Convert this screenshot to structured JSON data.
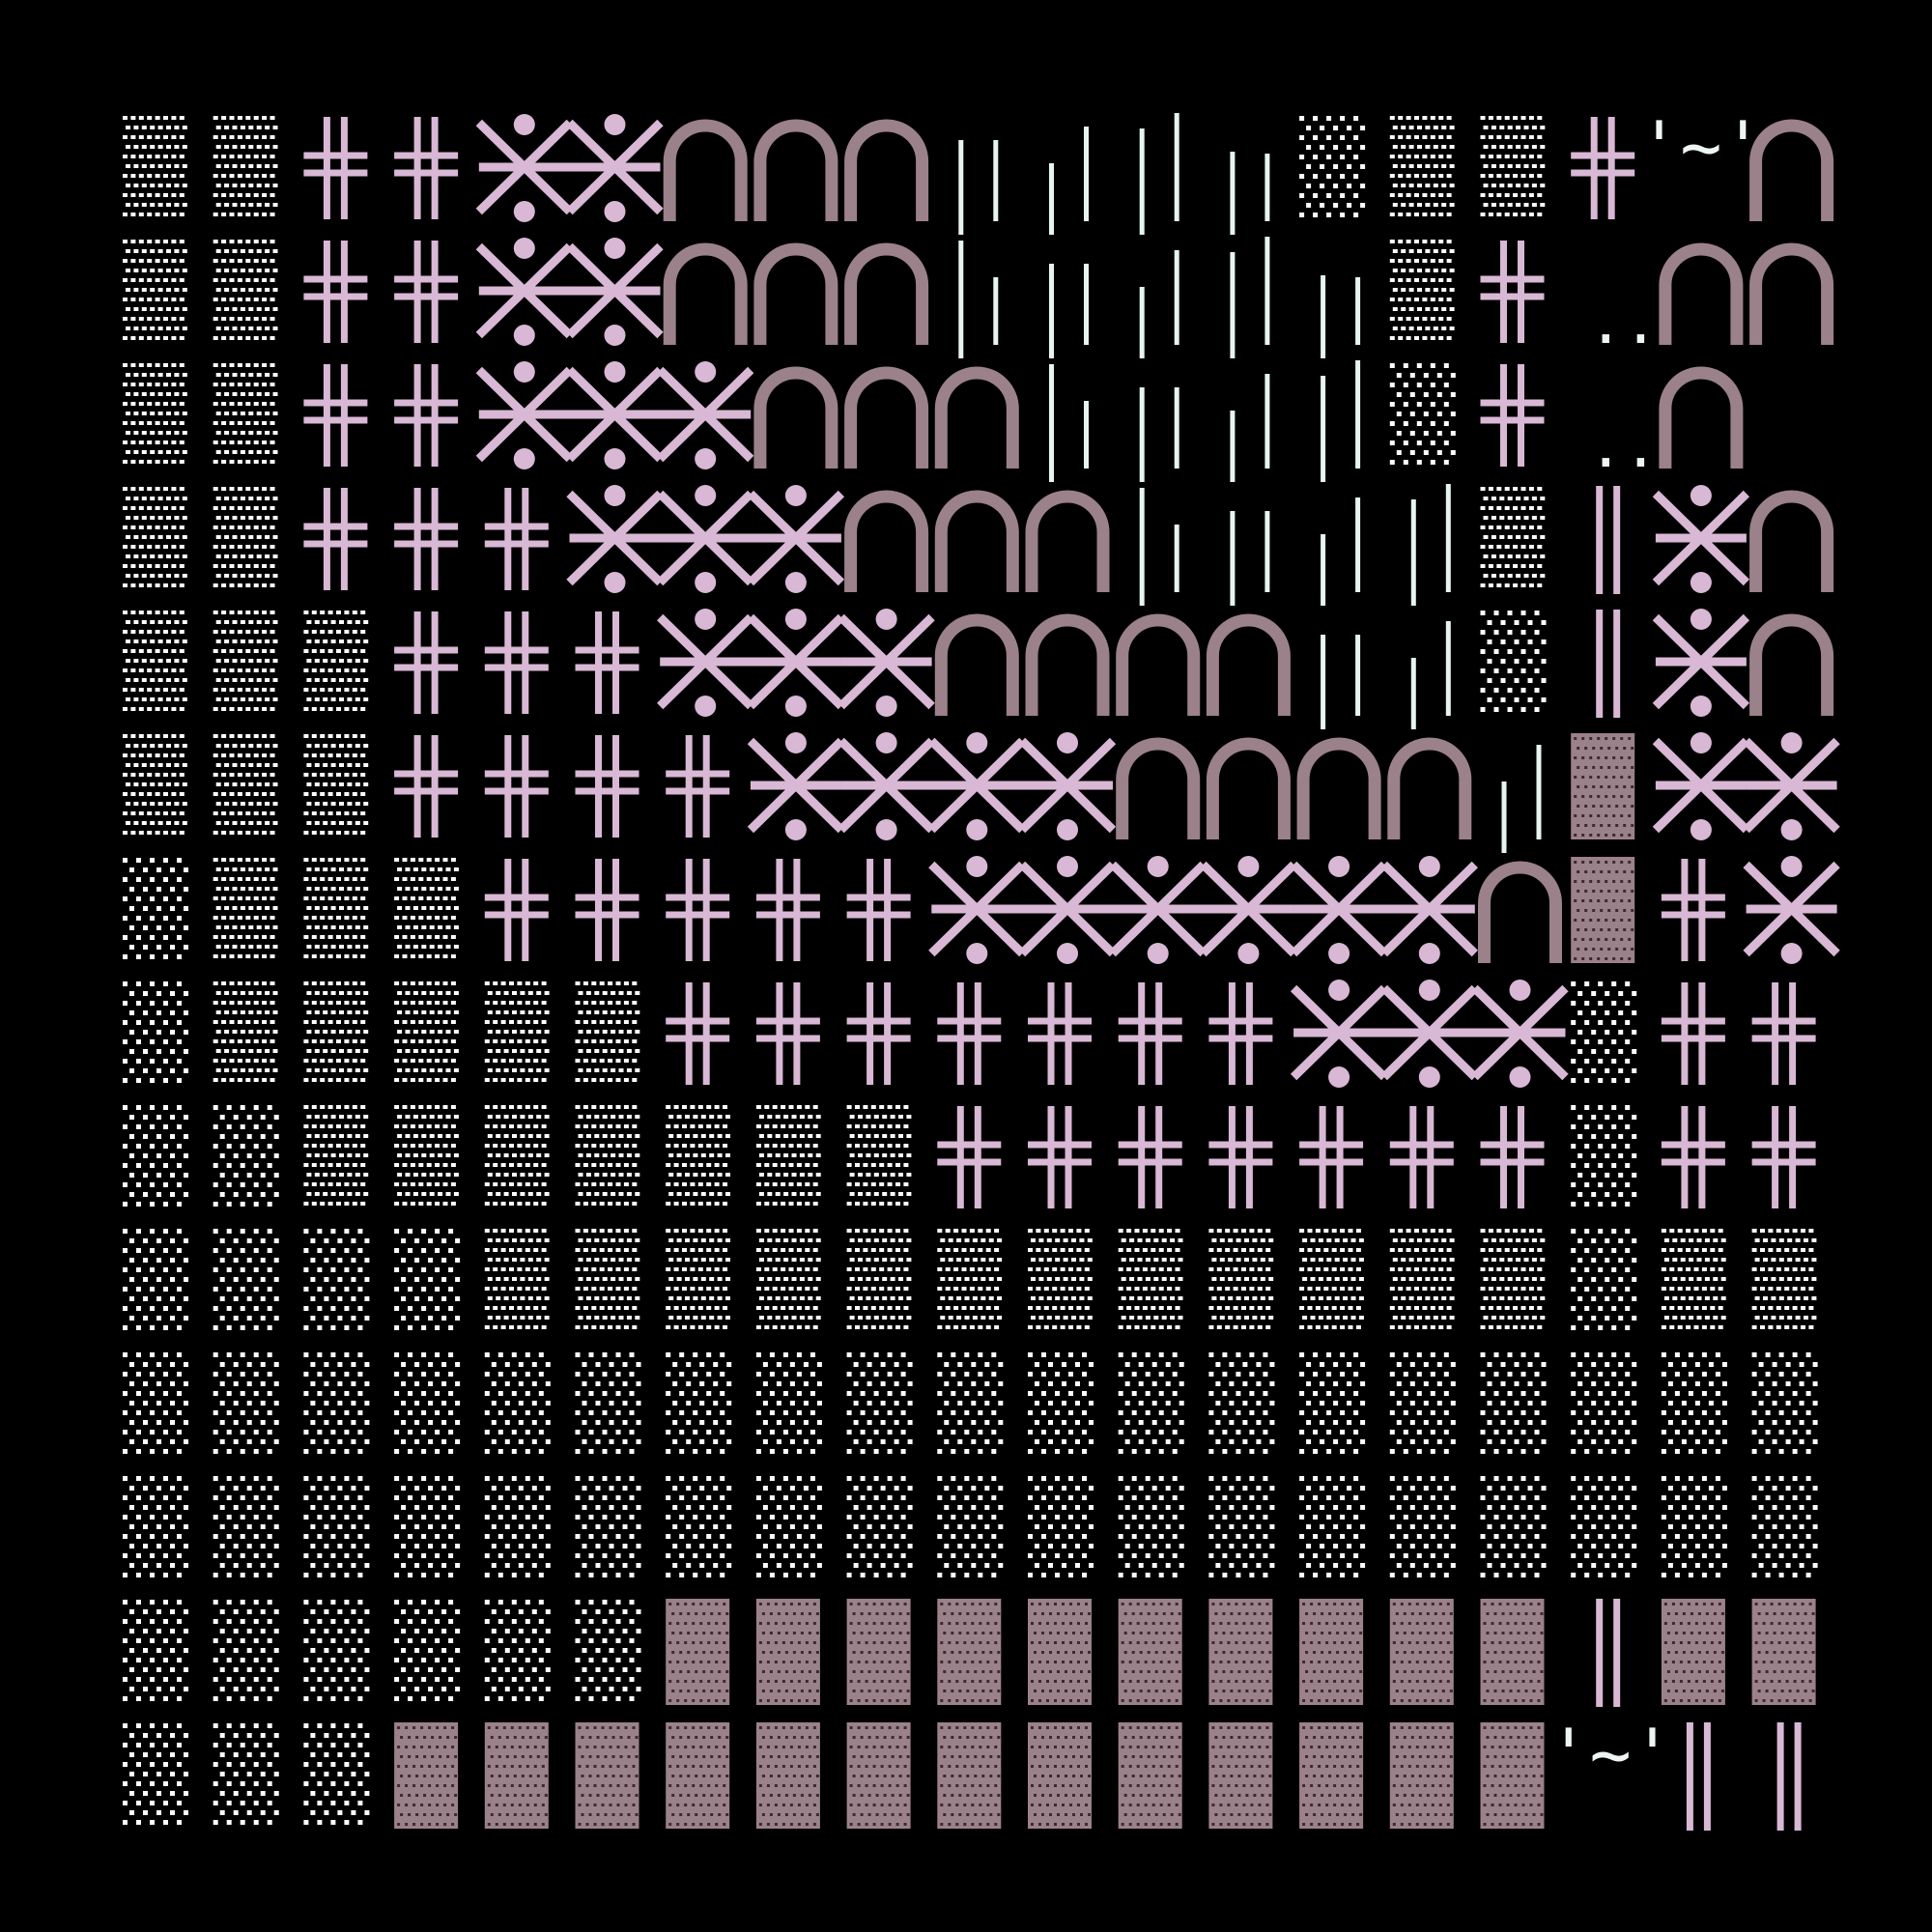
{
  "glyph_texts": {
    "tilde": "'~'",
    "dots": ".."
  }
}
